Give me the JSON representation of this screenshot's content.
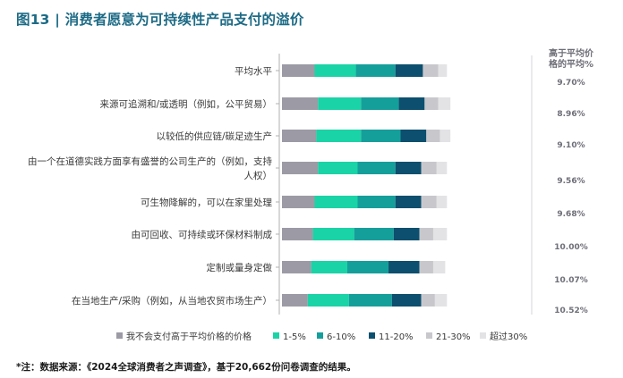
{
  "title": "图13 | 消费者愿意为可持续性产品支付的溢价",
  "footnote": "*注：数据来源：《2024全球消费者之声调查》，基于20,662份问卷调查的结果。",
  "side_header": [
    "高于平均价",
    "格的平均%"
  ],
  "colors": [
    "#9b9aa5",
    "#1ad3a6",
    "#159f9b",
    "#0d4f6e",
    "#c8c8cc",
    "#e3e3e6"
  ],
  "chart_data": {
    "type": "bar",
    "orientation": "horizontal",
    "stacked": true,
    "categories": [
      [
        "平均水平"
      ],
      [
        "来源可追溯和/或透明（例如，公平贸易）"
      ],
      [
        "以较低的供应链/碳足迹生产"
      ],
      [
        "由一个在道德实践方面享有盛誉的公司生产的（例如，支持",
        "人权）"
      ],
      [
        "可生物降解的，可以在家里处理"
      ],
      [
        "由可回收、可持续或环保材料制成"
      ],
      [
        "定制或量身定做"
      ],
      [
        "在当地生产/采购（例如，从当地农贸市场生产）"
      ]
    ],
    "series": [
      {
        "name": "我不会支付高于平均价格的价格",
        "values": [
          19,
          21,
          20,
          21,
          19,
          18,
          17,
          15
        ]
      },
      {
        "name": "1-5%",
        "values": [
          24,
          25,
          26,
          23,
          25,
          24,
          21,
          24
        ]
      },
      {
        "name": "6-10%",
        "values": [
          23,
          22,
          23,
          22,
          22,
          23,
          24,
          25
        ]
      },
      {
        "name": "11-20%",
        "values": [
          16,
          15,
          15,
          15,
          15,
          15,
          18,
          17
        ]
      },
      {
        "name": "21-30%",
        "values": [
          9,
          8,
          8,
          9,
          9,
          8,
          8,
          8
        ]
      },
      {
        "name": "超过30%",
        "values": [
          5,
          7,
          6,
          6,
          6,
          8,
          7,
          7
        ]
      }
    ],
    "side_values": [
      "9.70%",
      "8.96%",
      "9.10%",
      "9.56%",
      "9.68%",
      "10.00%",
      "10.07%",
      "10.52%"
    ],
    "xlim": [
      0,
      100
    ],
    "legend_position": "bottom"
  }
}
